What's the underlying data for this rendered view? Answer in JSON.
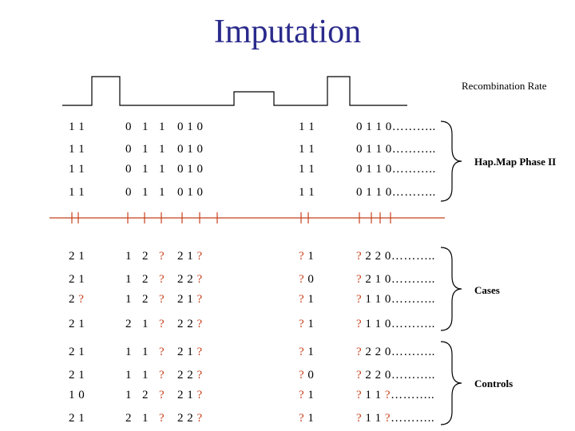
{
  "title": "Imputation",
  "recombination_label": "Recombination Rate",
  "groups": {
    "hapmap": "Hap.Map Phase II",
    "cases": "Cases",
    "controls": "Controls"
  },
  "rows": [
    {
      "c1": "1 1",
      "c2": [
        "0",
        "1",
        "1"
      ],
      "c3": "0 1 0",
      "c4": "1 1",
      "c5": "0 1 1 0……….."
    },
    {
      "c1": "1 1",
      "c2": [
        "0",
        "1",
        "1"
      ],
      "c3": "0 1 0",
      "c4": "1 1",
      "c5": "0 1 1 0……….."
    },
    {
      "c1": "1 1",
      "c2": [
        "0",
        "1",
        "1"
      ],
      "c3": "0 1 0",
      "c4": "1 1",
      "c5": "0 1 1 0……….."
    },
    {
      "c1": "1 1",
      "c2": [
        "0",
        "1",
        "1"
      ],
      "c3": "0 1 0",
      "c4": "1 1",
      "c5": "0 1 1 0……….."
    },
    {
      "c1": "2 1",
      "c2": [
        "1",
        "2",
        "?"
      ],
      "c3": "2 1 ?",
      "c4": "? 1",
      "c5": "? 2 2 0……….."
    },
    {
      "c1": "2 1",
      "c2": [
        "1",
        "2",
        "?"
      ],
      "c3": "2 2 ?",
      "c4": "? 0",
      "c5": "? 2 1 0……….."
    },
    {
      "c1": "2 ?",
      "c2": [
        "1",
        "2",
        "?"
      ],
      "c3": "2 1 ?",
      "c4": "? 1",
      "c5": "? 1 1 0……….."
    },
    {
      "c1": "2 1",
      "c2": [
        "2",
        "1",
        "?"
      ],
      "c3": "2 2 ?",
      "c4": "? 1",
      "c5": "? 1 1 0……….."
    },
    {
      "c1": "2 1",
      "c2": [
        "1",
        "1",
        "?"
      ],
      "c3": "2 1 ?",
      "c4": "? 1",
      "c5": "? 2 2 0……….."
    },
    {
      "c1": "2 1",
      "c2": [
        "1",
        "1",
        "?"
      ],
      "c3": "2 2 ?",
      "c4": "? 0",
      "c5": "? 2 2 0……….."
    },
    {
      "c1": "1 0",
      "c2": [
        "1",
        "2",
        "?"
      ],
      "c3": "2 1 ?",
      "c4": "? 1",
      "c5": "? 1 1 ?……….."
    },
    {
      "c1": "2 1",
      "c2": [
        "2",
        "1",
        "?"
      ],
      "c3": "2 2 ?",
      "c4": "? 1",
      "c5": "? 1 1 ?……….."
    }
  ]
}
